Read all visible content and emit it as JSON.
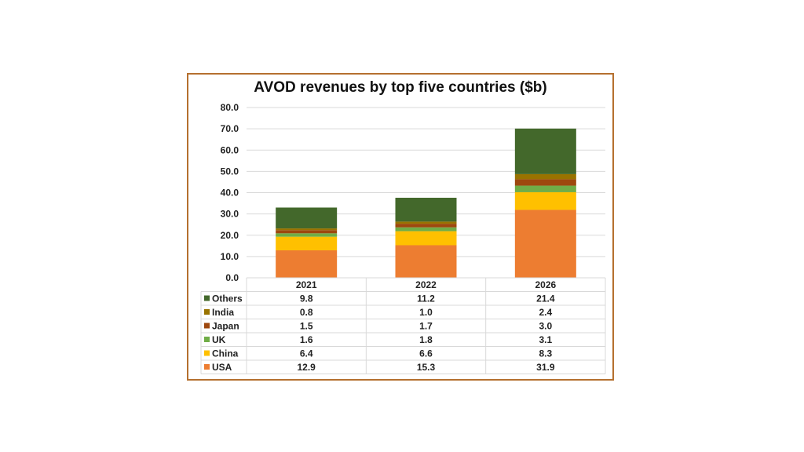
{
  "chart_data": {
    "type": "bar",
    "stacked": true,
    "title": "AVOD revenues by top five countries ($b)",
    "xlabel": "",
    "ylabel": "",
    "ylim": [
      0,
      80
    ],
    "yticks": [
      "0.0",
      "10.0",
      "20.0",
      "30.0",
      "40.0",
      "50.0",
      "60.0",
      "70.0",
      "80.0"
    ],
    "grid": true,
    "legend": "data-table",
    "categories": [
      "2021",
      "2022",
      "2026"
    ],
    "series": [
      {
        "name": "USA",
        "color": "#ed7d31",
        "values": [
          12.9,
          15.3,
          31.9
        ],
        "labels": [
          "12.9",
          "15.3",
          "31.9"
        ]
      },
      {
        "name": "China",
        "color": "#ffc000",
        "values": [
          6.4,
          6.6,
          8.3
        ],
        "labels": [
          "6.4",
          "6.6",
          "8.3"
        ]
      },
      {
        "name": "UK",
        "color": "#70ad47",
        "values": [
          1.6,
          1.8,
          3.1
        ],
        "labels": [
          "1.6",
          "1.8",
          "3.1"
        ]
      },
      {
        "name": "Japan",
        "color": "#9e480e",
        "values": [
          1.5,
          1.7,
          3.0
        ],
        "labels": [
          "1.5",
          "1.7",
          "3.0"
        ]
      },
      {
        "name": "India",
        "color": "#997300",
        "values": [
          0.8,
          1.0,
          2.4
        ],
        "labels": [
          "0.8",
          "1.0",
          "2.4"
        ]
      },
      {
        "name": "Others",
        "color": "#43682b",
        "values": [
          9.8,
          11.2,
          21.4
        ],
        "labels": [
          "9.8",
          "11.2",
          "21.4"
        ]
      }
    ]
  }
}
